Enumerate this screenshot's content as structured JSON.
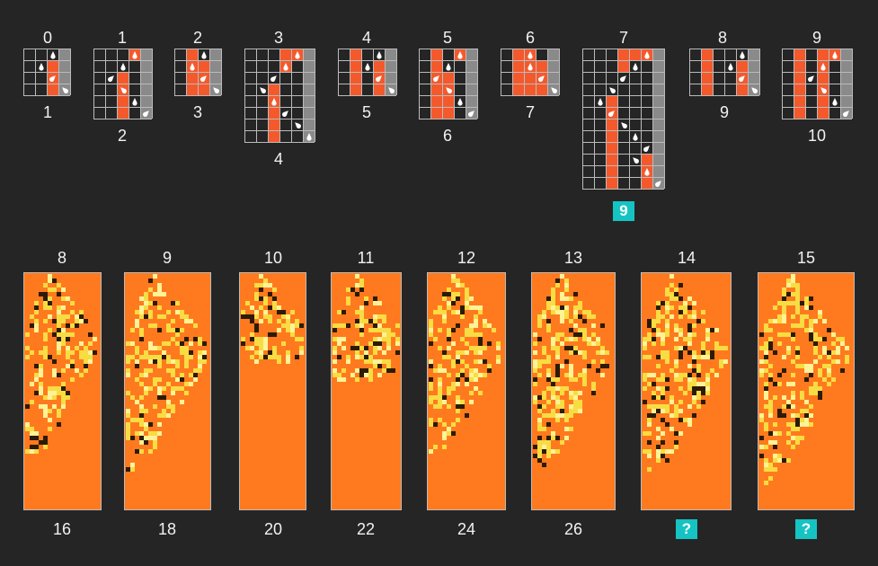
{
  "top_row": [
    {
      "top": "0",
      "bottom": "1",
      "highlight": false
    },
    {
      "top": "1",
      "bottom": "2",
      "highlight": false
    },
    {
      "top": "2",
      "bottom": "3",
      "highlight": false
    },
    {
      "top": "3",
      "bottom": "4",
      "highlight": false
    },
    {
      "top": "4",
      "bottom": "5",
      "highlight": false
    },
    {
      "top": "5",
      "bottom": "6",
      "highlight": false
    },
    {
      "top": "6",
      "bottom": "7",
      "highlight": false
    },
    {
      "top": "7",
      "bottom": "9",
      "highlight": true
    },
    {
      "top": "8",
      "bottom": "9",
      "highlight": false
    },
    {
      "top": "9",
      "bottom": "10",
      "highlight": false
    }
  ],
  "bottom_row": [
    {
      "top": "8",
      "bottom": "16",
      "question": false
    },
    {
      "top": "9",
      "bottom": "18",
      "question": false
    },
    {
      "top": "10",
      "bottom": "20",
      "question": false
    },
    {
      "top": "11",
      "bottom": "22",
      "question": false
    },
    {
      "top": "12",
      "bottom": "24",
      "question": false
    },
    {
      "top": "13",
      "bottom": "26",
      "question": false
    },
    {
      "top": "14",
      "bottom": "?",
      "question": true
    },
    {
      "top": "15",
      "bottom": "?",
      "question": true
    }
  ],
  "colors": {
    "background": "#252525",
    "cell_orange": "#f4592c",
    "grid_line": "#bbbbbb",
    "grey_column": "#8a8a8a",
    "evolution_fill": "#ff7a1e",
    "evolution_yellow": "#f8dc43",
    "evolution_pale": "#fff396",
    "evolution_dark": "#2c1b06",
    "badge": "#16c3c3"
  }
}
